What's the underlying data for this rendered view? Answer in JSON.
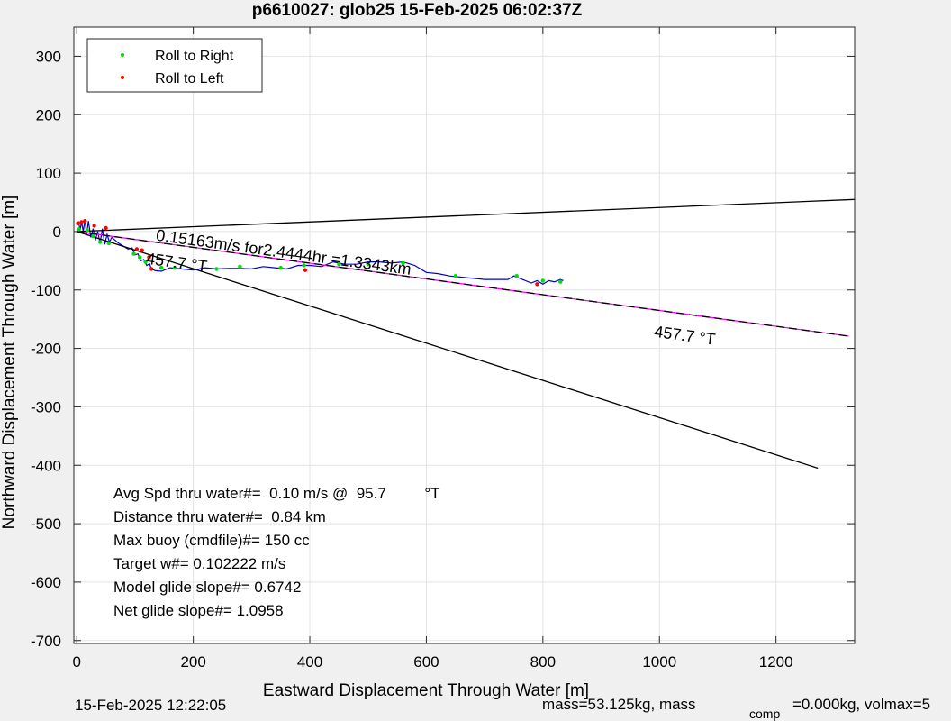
{
  "chart_data": {
    "type": "scatter",
    "title": "p6610027: glob25 15-Feb-2025 06:02:37Z",
    "xlabel": "Eastward Displacement Through Water [m]",
    "ylabel": "Northward Displacement Through Water [m]",
    "xlim": [
      -5,
      1335
    ],
    "ylim": [
      -705,
      350
    ],
    "xticks": [
      0,
      200,
      400,
      600,
      800,
      1000,
      1200
    ],
    "yticks": [
      300,
      200,
      100,
      0,
      -100,
      -200,
      -300,
      -400,
      -500,
      -600,
      -700
    ],
    "grid": true,
    "legend": {
      "placement": "top-left",
      "entries": [
        {
          "label": "Roll to Right",
          "color": "#00e000"
        },
        {
          "label": "Roll to Left",
          "color": "#ff0000"
        }
      ]
    },
    "series": [
      {
        "kind": "track",
        "color": "#0000cc",
        "x": [
          0,
          3,
          6,
          8,
          11,
          14,
          17,
          20,
          24,
          28,
          32,
          36,
          40,
          44,
          48,
          52,
          56,
          60,
          66,
          72,
          80,
          88,
          95,
          100,
          105,
          110,
          115,
          120,
          125,
          128,
          135,
          145,
          160,
          180,
          200,
          220,
          240,
          260,
          280,
          300,
          320,
          340,
          360,
          380,
          400,
          420,
          440,
          460,
          480,
          500,
          520,
          540,
          560,
          580,
          600,
          620,
          640,
          660,
          680,
          700,
          720,
          740,
          750,
          760,
          780,
          790,
          800,
          810,
          820,
          830,
          835
        ],
        "y": [
          10,
          16,
          2,
          18,
          0,
          20,
          -5,
          18,
          -10,
          5,
          -15,
          0,
          -20,
          5,
          -22,
          -5,
          -18,
          -10,
          -15,
          -20,
          -25,
          -30,
          -28,
          -40,
          -38,
          -50,
          -48,
          -58,
          -55,
          -64,
          -67,
          -68,
          -62,
          -64,
          -66,
          -62,
          -64,
          -63,
          -63,
          -64,
          -60,
          -62,
          -64,
          -58,
          -58,
          -60,
          -52,
          -56,
          -56,
          -52,
          -52,
          -54,
          -52,
          -58,
          -70,
          -72,
          -76,
          -78,
          -80,
          -82,
          -82,
          -82,
          -76,
          -80,
          -88,
          -84,
          -90,
          -84,
          -86,
          -82,
          -84
        ]
      },
      {
        "kind": "heading-line",
        "color": "#ff00ff",
        "style": "solid",
        "x": [
          0,
          1325
        ],
        "y": [
          0,
          -179
        ]
      },
      {
        "kind": "heading-line",
        "color": "#000000",
        "style": "dashed",
        "x": [
          0,
          1325
        ],
        "y": [
          0,
          -179
        ]
      },
      {
        "kind": "line",
        "color": "#000000",
        "style": "solid",
        "x": [
          0,
          1335
        ],
        "y": [
          0,
          55
        ]
      },
      {
        "kind": "line",
        "color": "#000000",
        "style": "solid",
        "x": [
          0,
          1272
        ],
        "y": [
          0,
          -405
        ]
      },
      {
        "kind": "points",
        "name": "Roll to Right",
        "color": "#00e000",
        "x": [
          4,
          18,
          28,
          40,
          55,
          98,
          108,
          118,
          145,
          168,
          240,
          280,
          350,
          390,
          450,
          500,
          560,
          650,
          755,
          800,
          830
        ],
        "y": [
          4,
          2,
          -8,
          -18,
          -20,
          -38,
          -44,
          -52,
          -62,
          -62,
          -64,
          -60,
          -62,
          -58,
          -56,
          -56,
          -54,
          -76,
          -76,
          -84,
          -86
        ]
      },
      {
        "kind": "points",
        "name": "Roll to Left",
        "color": "#ff0000",
        "x": [
          2,
          8,
          14,
          30,
          50,
          103,
          112,
          124,
          128,
          392,
          790
        ],
        "y": [
          14,
          16,
          18,
          10,
          6,
          -30,
          -32,
          -44,
          -64,
          -66,
          -90
        ]
      }
    ],
    "annotations": [
      {
        "text": "0.15163m/s for2.4444hr =1.3343km",
        "x": 135,
        "y": -15,
        "rotate": 7.7
      },
      {
        "text": "457.7  °T",
        "x": 118,
        "y": -55,
        "rotate": 7.7
      },
      {
        "text": "457.7  °T",
        "x": 990,
        "y": -180,
        "rotate": 7.7
      }
    ],
    "stats": [
      "Avg Spd thru water#=  0.10 m/s @  95.7         °T",
      "Distance thru water#=  0.84 km",
      "Max buoy (cmdfile)#= 150 cc",
      "Target w#= 0.102222 m/s",
      "Model glide slope#= 0.6742",
      "Net glide slope#= 1.0958"
    ]
  },
  "footer": {
    "timestamp": "15-Feb-2025 12:22:05",
    "mass_text": "mass=53.125kg, mass",
    "comp_subscript": "comp",
    "volmax_text": "=0.000kg, volmax=5"
  }
}
